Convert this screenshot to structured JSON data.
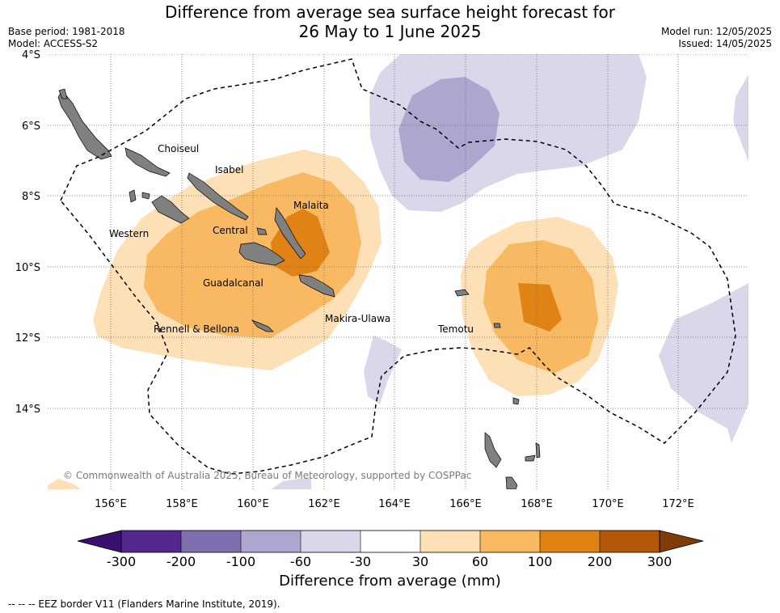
{
  "title_line1": "Difference from average sea surface height forecast for",
  "title_line2": "26 May to 1 June 2025",
  "meta_left": [
    "Base period: 1981-2018",
    "Model: ACCESS-S2"
  ],
  "meta_right": [
    "Model run: 12/05/2025",
    "Issued: 14/05/2025"
  ],
  "lat_labels": [
    "4°S",
    "6°S",
    "8°S",
    "10°S",
    "12°S",
    "14°S"
  ],
  "lon_labels": [
    "156°E",
    "158°E",
    "160°E",
    "162°E",
    "164°E",
    "166°E",
    "168°E",
    "170°E",
    "172°E"
  ],
  "places": [
    "Choiseul",
    "Isabel",
    "Malaita",
    "Western",
    "Central",
    "Guadalcanal",
    "Makira-Ulawa",
    "Rennell & Bellona",
    "Temotu"
  ],
  "copyright": "© Commonwealth of Australia 2025, Bureau of Meteorology, supported by COSPPac",
  "colorbar": {
    "ticks": [
      "-300",
      "-200",
      "-100",
      "-60",
      "-30",
      "30",
      "60",
      "100",
      "200",
      "300"
    ],
    "colors": [
      "#3b0f70",
      "#54278f",
      "#7f6faf",
      "#aea6cf",
      "#d8d8ea",
      "#ffffff",
      "#fee0b6",
      "#f9b862",
      "#e08214",
      "#b35806",
      "#7f3b08"
    ],
    "label": "Difference from average (mm)"
  },
  "footnote": "--  --  -- EEZ border V11 (Flanders Marine Institute, 2019)."
}
